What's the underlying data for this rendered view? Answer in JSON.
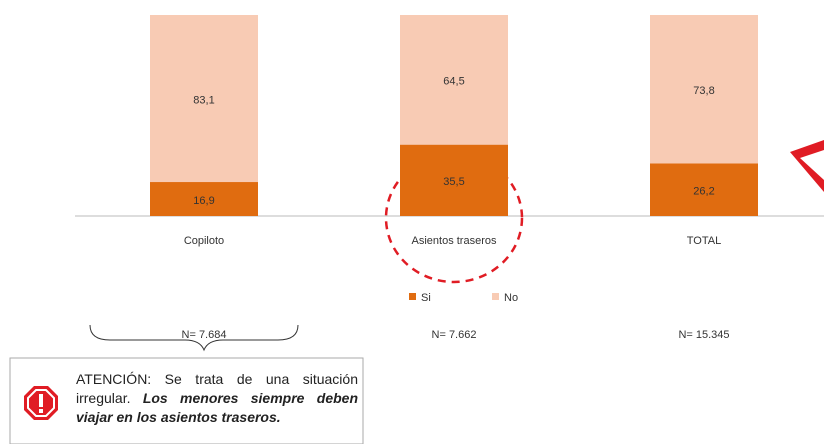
{
  "chart_data": {
    "type": "bar",
    "stacked": true,
    "categories": [
      "Copiloto",
      "Asientos traseros",
      "TOTAL"
    ],
    "series": [
      {
        "name": "Si",
        "color": "#e06c10",
        "values": [
          16.9,
          35.5,
          26.2
        ],
        "value_labels": [
          "16,9",
          "35,5",
          "26,2"
        ]
      },
      {
        "name": "No",
        "color": "#f8cbb4",
        "values": [
          83.1,
          64.5,
          73.8
        ],
        "value_labels": [
          "83,1",
          "64,5",
          "73,8"
        ]
      }
    ],
    "ylim": [
      0,
      100
    ],
    "annotations": {
      "sample_sizes": [
        "N= 7.684",
        "N= 7.662",
        "N= 15.345"
      ],
      "warning": {
        "text": "ATENCIÓN: Se trata de una situación irregular.",
        "emphasis": "Los menores siempre deben viajar en los asientos traseros."
      }
    }
  }
}
